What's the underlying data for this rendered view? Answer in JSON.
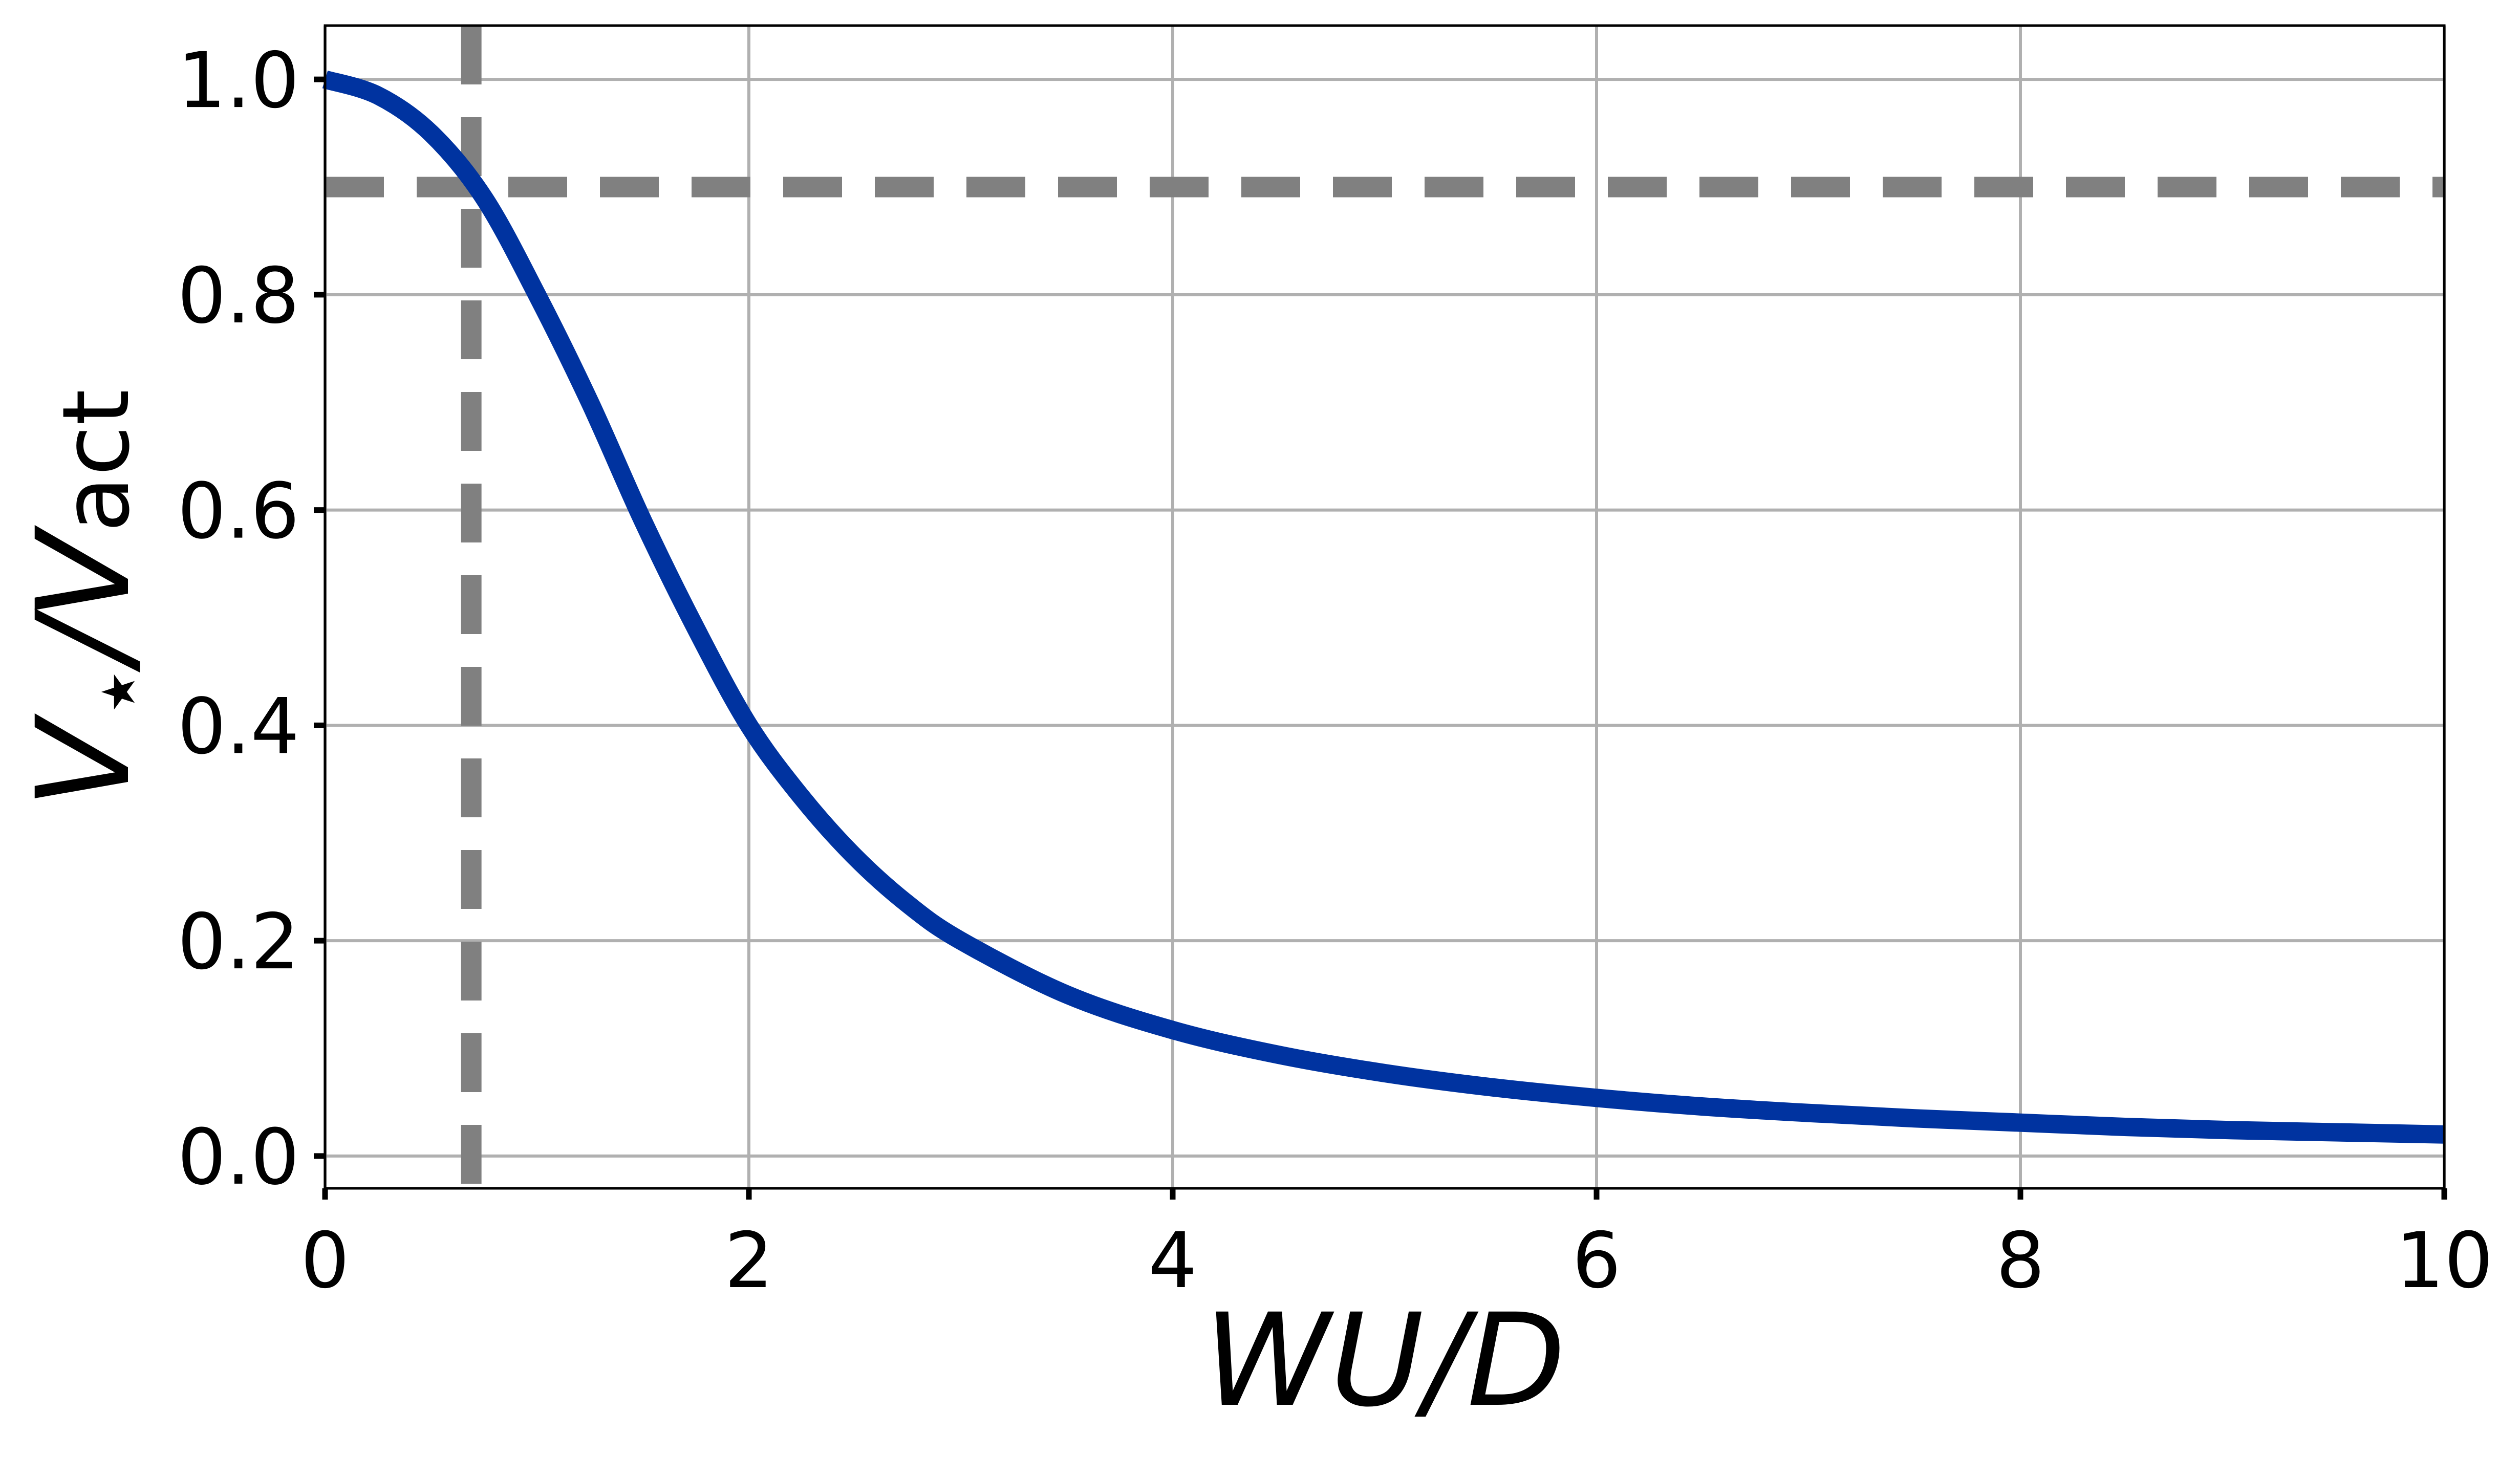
{
  "chart_data": {
    "type": "line",
    "title": "",
    "xlabel": "WU/D",
    "ylabel": {
      "main": "V",
      "sub1": "⋆",
      "slash": "/V",
      "sub2": "act"
    },
    "xlim": [
      0,
      10
    ],
    "ylim": [
      -0.03,
      1.05
    ],
    "xticks": [
      0,
      2,
      4,
      6,
      8,
      10
    ],
    "xtick_labels": [
      "0",
      "2",
      "4",
      "6",
      "8",
      "10"
    ],
    "yticks": [
      0.0,
      0.2,
      0.4,
      0.6,
      0.8,
      1.0
    ],
    "ytick_labels": [
      "0.0",
      "0.2",
      "0.4",
      "0.6",
      "0.8",
      "1.0"
    ],
    "grid": true,
    "series": [
      {
        "color": "#0033a0",
        "style": "solid",
        "x": [
          0,
          0.25,
          0.5,
          0.75,
          1.0,
          1.25,
          1.5,
          1.75,
          2.0,
          2.25,
          2.5,
          2.75,
          3.0,
          3.5,
          4.0,
          4.5,
          5.0,
          5.5,
          6.0,
          6.5,
          7.0,
          7.5,
          8.0,
          8.5,
          9.0,
          9.5,
          10.0
        ],
        "y": [
          1.0,
          0.985,
          0.95,
          0.89,
          0.8,
          0.7,
          0.59,
          0.49,
          0.4,
          0.333,
          0.278,
          0.234,
          0.2,
          0.15,
          0.117,
          0.094,
          0.077,
          0.064,
          0.054,
          0.046,
          0.04,
          0.035,
          0.031,
          0.027,
          0.024,
          0.022,
          0.02
        ]
      }
    ],
    "reference_lines": [
      {
        "orientation": "horizontal",
        "value": 0.9,
        "color": "#808080",
        "style": "dashed"
      },
      {
        "orientation": "vertical",
        "value": 0.69,
        "color": "#808080",
        "style": "dashed"
      }
    ]
  }
}
